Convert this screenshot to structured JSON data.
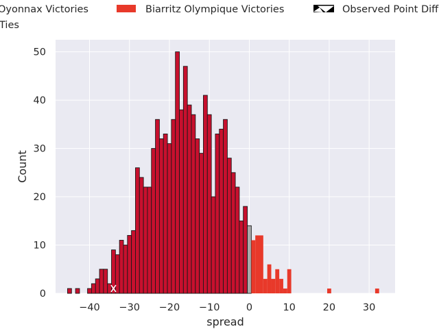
{
  "chart_data": {
    "type": "bar",
    "title": "",
    "xlabel": "spread",
    "ylabel": "Count",
    "xlim": [
      -48.5,
      36.5
    ],
    "ylim": [
      0,
      52.5
    ],
    "x_ticks": [
      -40,
      -30,
      -20,
      -10,
      0,
      10,
      20,
      30
    ],
    "x_tick_labels": [
      "−40",
      "−30",
      "−20",
      "−10",
      "0",
      "10",
      "20",
      "30"
    ],
    "y_ticks": [
      0,
      10,
      20,
      30,
      40,
      50
    ],
    "y_tick_labels": [
      "0",
      "10",
      "20",
      "30",
      "40",
      "50"
    ],
    "grid": true,
    "legend_position": "top (outside, clipped)",
    "colors": {
      "oyonnax": "#c8102e",
      "biarritz": "#e8392a",
      "tie": "#a9a9a9",
      "observed": "#000000",
      "plot_bg": "#eaeaf2",
      "grid": "#ffffff"
    },
    "legend": [
      {
        "label": "Oyonnax Victories",
        "key": "oyonnax"
      },
      {
        "label": "Biarritz Olympique Victories",
        "key": "biarritz"
      },
      {
        "label": "Observed Point Difference",
        "key": "observed"
      },
      {
        "label": "Ties",
        "key": "tie"
      }
    ],
    "series": [
      {
        "name": "Oyonnax Victories",
        "key": "oyonnax",
        "x": [
          -45,
          -43,
          -40,
          -39,
          -38,
          -37,
          -36,
          -35,
          -34,
          -33,
          -32,
          -31,
          -30,
          -29,
          -28,
          -27,
          -26,
          -25,
          -24,
          -23,
          -22,
          -21,
          -20,
          -19,
          -18,
          -17,
          -16,
          -15,
          -14,
          -13,
          -12,
          -11,
          -10,
          -9,
          -8,
          -7,
          -6,
          -5,
          -4,
          -3,
          -2,
          -1
        ],
        "values": [
          1,
          1,
          1,
          2,
          3,
          5,
          5,
          2,
          9,
          8,
          11,
          10,
          12,
          13,
          26,
          24,
          22,
          22,
          30,
          36,
          32,
          33,
          31,
          36,
          50,
          38,
          47,
          39,
          37,
          32,
          29,
          41,
          37,
          20,
          33,
          34,
          36,
          28,
          25,
          22,
          15,
          18
        ]
      },
      {
        "name": "Ties",
        "key": "tie",
        "x": [
          0
        ],
        "values": [
          14
        ]
      },
      {
        "name": "Biarritz Olympique Victories",
        "key": "biarritz",
        "x": [
          1,
          2,
          3,
          4,
          5,
          6,
          7,
          8,
          9,
          10,
          20,
          32
        ],
        "values": [
          11,
          12,
          12,
          3,
          6,
          3,
          5,
          3,
          1,
          5,
          1,
          1
        ]
      }
    ],
    "observed_point": {
      "name": "Observed Point Difference",
      "x": -34,
      "y": 2
    }
  }
}
